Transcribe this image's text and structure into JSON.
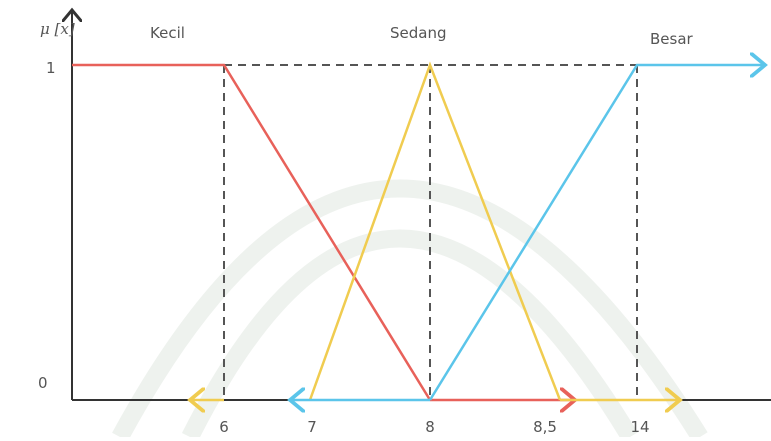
{
  "y_axis_label": "μ [x]",
  "y_labels": [
    "1",
    "0"
  ],
  "x_labels": [
    "6",
    "7",
    "8",
    "8,5",
    "14"
  ],
  "sets": [
    "Kecil",
    "Sedang",
    "Besar"
  ]
}
